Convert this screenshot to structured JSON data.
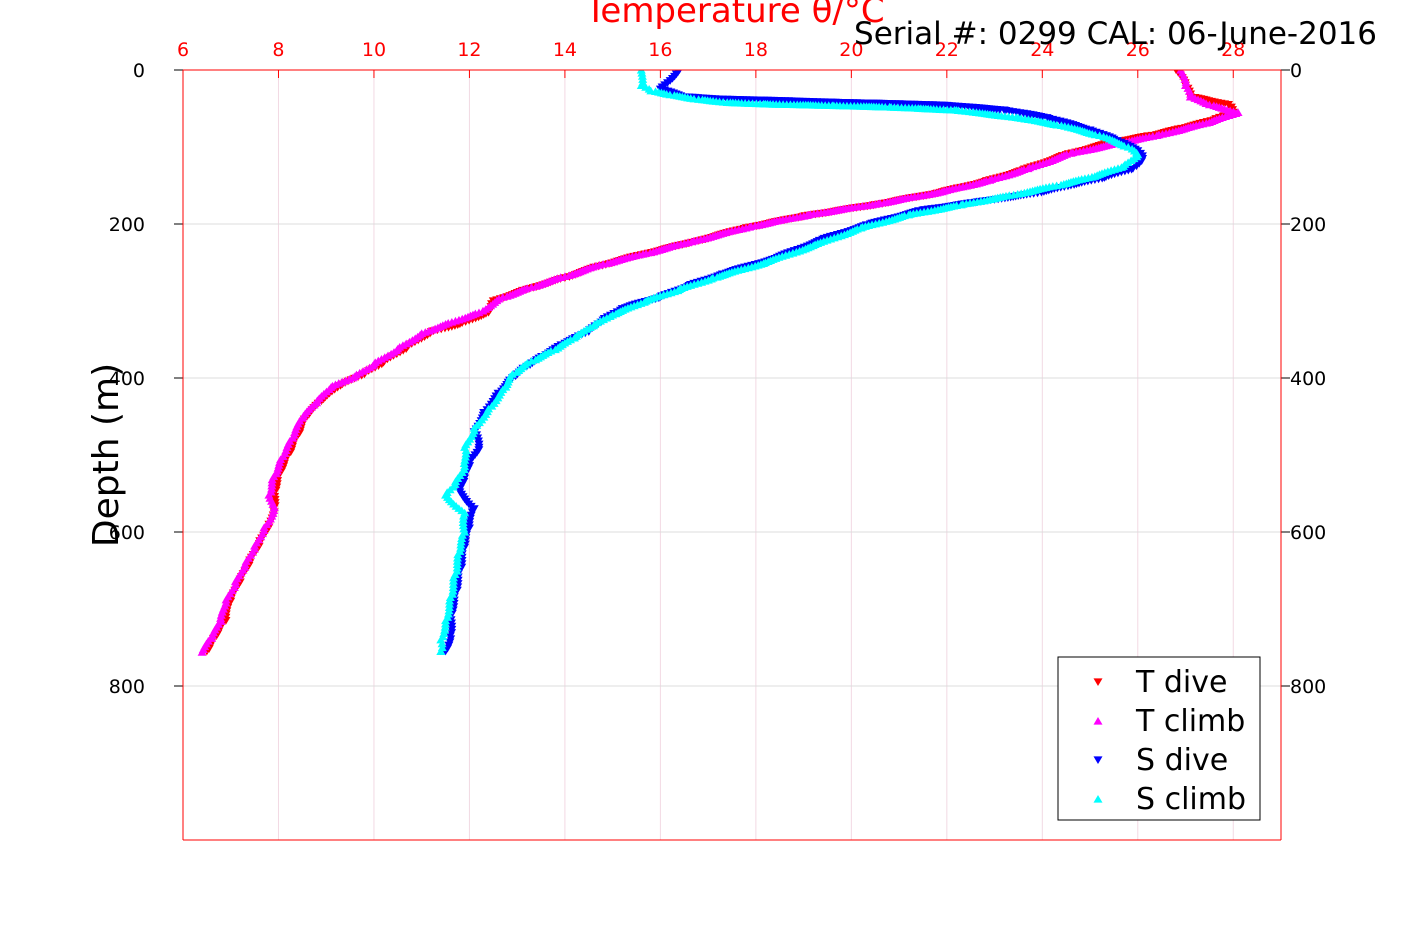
{
  "chart_data": {
    "type": "scatter",
    "title": "Temperature θ/°C",
    "annotation": "Serial #: 0299 CAL: 06-June-2016",
    "xlabel": "Temperature θ/°C",
    "ylabel": "Depth (m)",
    "xlim": [
      6,
      29
    ],
    "ylim": [
      0,
      1000
    ],
    "y_reversed": true,
    "x_axis_position": "top",
    "x_ticks": [
      6,
      8,
      10,
      12,
      14,
      16,
      18,
      20,
      22,
      24,
      26,
      28
    ],
    "y_ticks": [
      0,
      200,
      400,
      600,
      800
    ],
    "grid": true,
    "legend_position": "bottom-right",
    "series": [
      {
        "name": "T dive",
        "color": "#ff0000",
        "marker": "triangle-down",
        "points": [
          [
            26.8,
            0
          ],
          [
            27.0,
            20
          ],
          [
            27.1,
            35
          ],
          [
            27.9,
            45
          ],
          [
            28.0,
            55
          ],
          [
            27.6,
            65
          ],
          [
            27.0,
            75
          ],
          [
            26.3,
            85
          ],
          [
            25.4,
            95
          ],
          [
            24.5,
            110
          ],
          [
            23.6,
            130
          ],
          [
            22.8,
            145
          ],
          [
            21.8,
            160
          ],
          [
            20.5,
            175
          ],
          [
            19.0,
            190
          ],
          [
            17.8,
            205
          ],
          [
            16.6,
            225
          ],
          [
            15.6,
            240
          ],
          [
            14.7,
            255
          ],
          [
            14.0,
            270
          ],
          [
            13.2,
            285
          ],
          [
            12.5,
            300
          ],
          [
            12.4,
            315
          ],
          [
            11.8,
            330
          ],
          [
            11.2,
            340
          ],
          [
            10.7,
            360
          ],
          [
            10.2,
            380
          ],
          [
            9.8,
            395
          ],
          [
            9.3,
            410
          ],
          [
            8.9,
            430
          ],
          [
            8.6,
            450
          ],
          [
            8.4,
            475
          ],
          [
            8.2,
            500
          ],
          [
            8.0,
            525
          ],
          [
            7.9,
            550
          ],
          [
            7.9,
            570
          ],
          [
            7.8,
            590
          ],
          [
            7.6,
            615
          ],
          [
            7.4,
            640
          ],
          [
            7.2,
            665
          ],
          [
            7.0,
            690
          ],
          [
            6.9,
            715
          ],
          [
            6.7,
            735
          ],
          [
            6.5,
            755
          ]
        ]
      },
      {
        "name": "T climb",
        "color": "#ff00ff",
        "marker": "triangle-up",
        "points": [
          [
            26.9,
            0
          ],
          [
            27.0,
            20
          ],
          [
            27.1,
            35
          ],
          [
            27.5,
            45
          ],
          [
            28.1,
            55
          ],
          [
            27.5,
            68
          ],
          [
            26.4,
            85
          ],
          [
            25.6,
            95
          ],
          [
            24.6,
            108
          ],
          [
            23.7,
            128
          ],
          [
            22.9,
            143
          ],
          [
            21.9,
            158
          ],
          [
            20.6,
            173
          ],
          [
            19.1,
            188
          ],
          [
            17.9,
            203
          ],
          [
            16.7,
            222
          ],
          [
            15.7,
            238
          ],
          [
            14.8,
            252
          ],
          [
            14.0,
            268
          ],
          [
            13.3,
            282
          ],
          [
            12.7,
            295
          ],
          [
            12.2,
            315
          ],
          [
            11.5,
            330
          ],
          [
            11.0,
            342
          ],
          [
            10.5,
            362
          ],
          [
            10.0,
            382
          ],
          [
            9.6,
            398
          ],
          [
            9.1,
            412
          ],
          [
            8.8,
            432
          ],
          [
            8.5,
            452
          ],
          [
            8.3,
            478
          ],
          [
            8.1,
            502
          ],
          [
            7.9,
            528
          ],
          [
            7.8,
            552
          ],
          [
            7.9,
            572
          ],
          [
            7.7,
            594
          ],
          [
            7.5,
            618
          ],
          [
            7.3,
            642
          ],
          [
            7.1,
            668
          ],
          [
            6.9,
            692
          ],
          [
            6.8,
            716
          ],
          [
            6.6,
            738
          ],
          [
            6.4,
            756
          ]
        ]
      },
      {
        "name": "S dive",
        "color": "#0000ff",
        "marker": "triangle-down",
        "points": [
          [
            16.4,
            0
          ],
          [
            16.0,
            25
          ],
          [
            16.5,
            35
          ],
          [
            17.3,
            38
          ],
          [
            18.6,
            40
          ],
          [
            19.6,
            42
          ],
          [
            21.0,
            44
          ],
          [
            22.0,
            46
          ],
          [
            23.2,
            52
          ],
          [
            24.1,
            62
          ],
          [
            25.0,
            78
          ],
          [
            25.5,
            90
          ],
          [
            26.0,
            105
          ],
          [
            26.1,
            115
          ],
          [
            25.9,
            128
          ],
          [
            25.3,
            140
          ],
          [
            24.6,
            150
          ],
          [
            23.9,
            160
          ],
          [
            22.6,
            172
          ],
          [
            21.5,
            182
          ],
          [
            20.4,
            200
          ],
          [
            19.4,
            220
          ],
          [
            18.4,
            245
          ],
          [
            17.3,
            265
          ],
          [
            16.6,
            280
          ],
          [
            16.0,
            295
          ],
          [
            15.2,
            310
          ],
          [
            14.8,
            325
          ],
          [
            14.5,
            340
          ],
          [
            14.0,
            355
          ],
          [
            13.6,
            370
          ],
          [
            13.2,
            385
          ],
          [
            12.9,
            400
          ],
          [
            12.6,
            420
          ],
          [
            12.3,
            445
          ],
          [
            12.1,
            470
          ],
          [
            12.2,
            490
          ],
          [
            12.0,
            510
          ],
          [
            11.9,
            530
          ],
          [
            11.8,
            548
          ],
          [
            12.1,
            570
          ],
          [
            12.0,
            595
          ],
          [
            11.9,
            620
          ],
          [
            11.8,
            650
          ],
          [
            11.7,
            680
          ],
          [
            11.6,
            710
          ],
          [
            11.6,
            735
          ],
          [
            11.5,
            755
          ]
        ]
      },
      {
        "name": "S climb",
        "color": "#00ffff",
        "marker": "triangle-up",
        "points": [
          [
            15.6,
            0
          ],
          [
            15.6,
            20
          ],
          [
            15.8,
            27
          ],
          [
            16.2,
            32
          ],
          [
            16.8,
            38
          ],
          [
            17.4,
            42
          ],
          [
            18.2,
            44
          ],
          [
            19.6,
            46
          ],
          [
            20.8,
            48
          ],
          [
            22.2,
            52
          ],
          [
            23.5,
            62
          ],
          [
            24.4,
            72
          ],
          [
            25.2,
            85
          ],
          [
            25.8,
            100
          ],
          [
            26.0,
            110
          ],
          [
            25.7,
            125
          ],
          [
            25.1,
            138
          ],
          [
            24.3,
            150
          ],
          [
            23.4,
            162
          ],
          [
            22.3,
            175
          ],
          [
            21.2,
            188
          ],
          [
            20.2,
            205
          ],
          [
            19.2,
            228
          ],
          [
            18.2,
            250
          ],
          [
            17.1,
            270
          ],
          [
            16.4,
            285
          ],
          [
            15.7,
            300
          ],
          [
            15.0,
            318
          ],
          [
            14.6,
            332
          ],
          [
            14.2,
            348
          ],
          [
            13.8,
            363
          ],
          [
            13.3,
            378
          ],
          [
            12.9,
            395
          ],
          [
            12.7,
            415
          ],
          [
            12.4,
            440
          ],
          [
            12.1,
            465
          ],
          [
            11.9,
            490
          ],
          [
            11.9,
            515
          ],
          [
            11.7,
            538
          ],
          [
            11.5,
            552
          ],
          [
            11.9,
            575
          ],
          [
            11.9,
            600
          ],
          [
            11.8,
            625
          ],
          [
            11.7,
            655
          ],
          [
            11.6,
            685
          ],
          [
            11.5,
            715
          ],
          [
            11.4,
            740
          ],
          [
            11.4,
            755
          ]
        ]
      }
    ]
  }
}
